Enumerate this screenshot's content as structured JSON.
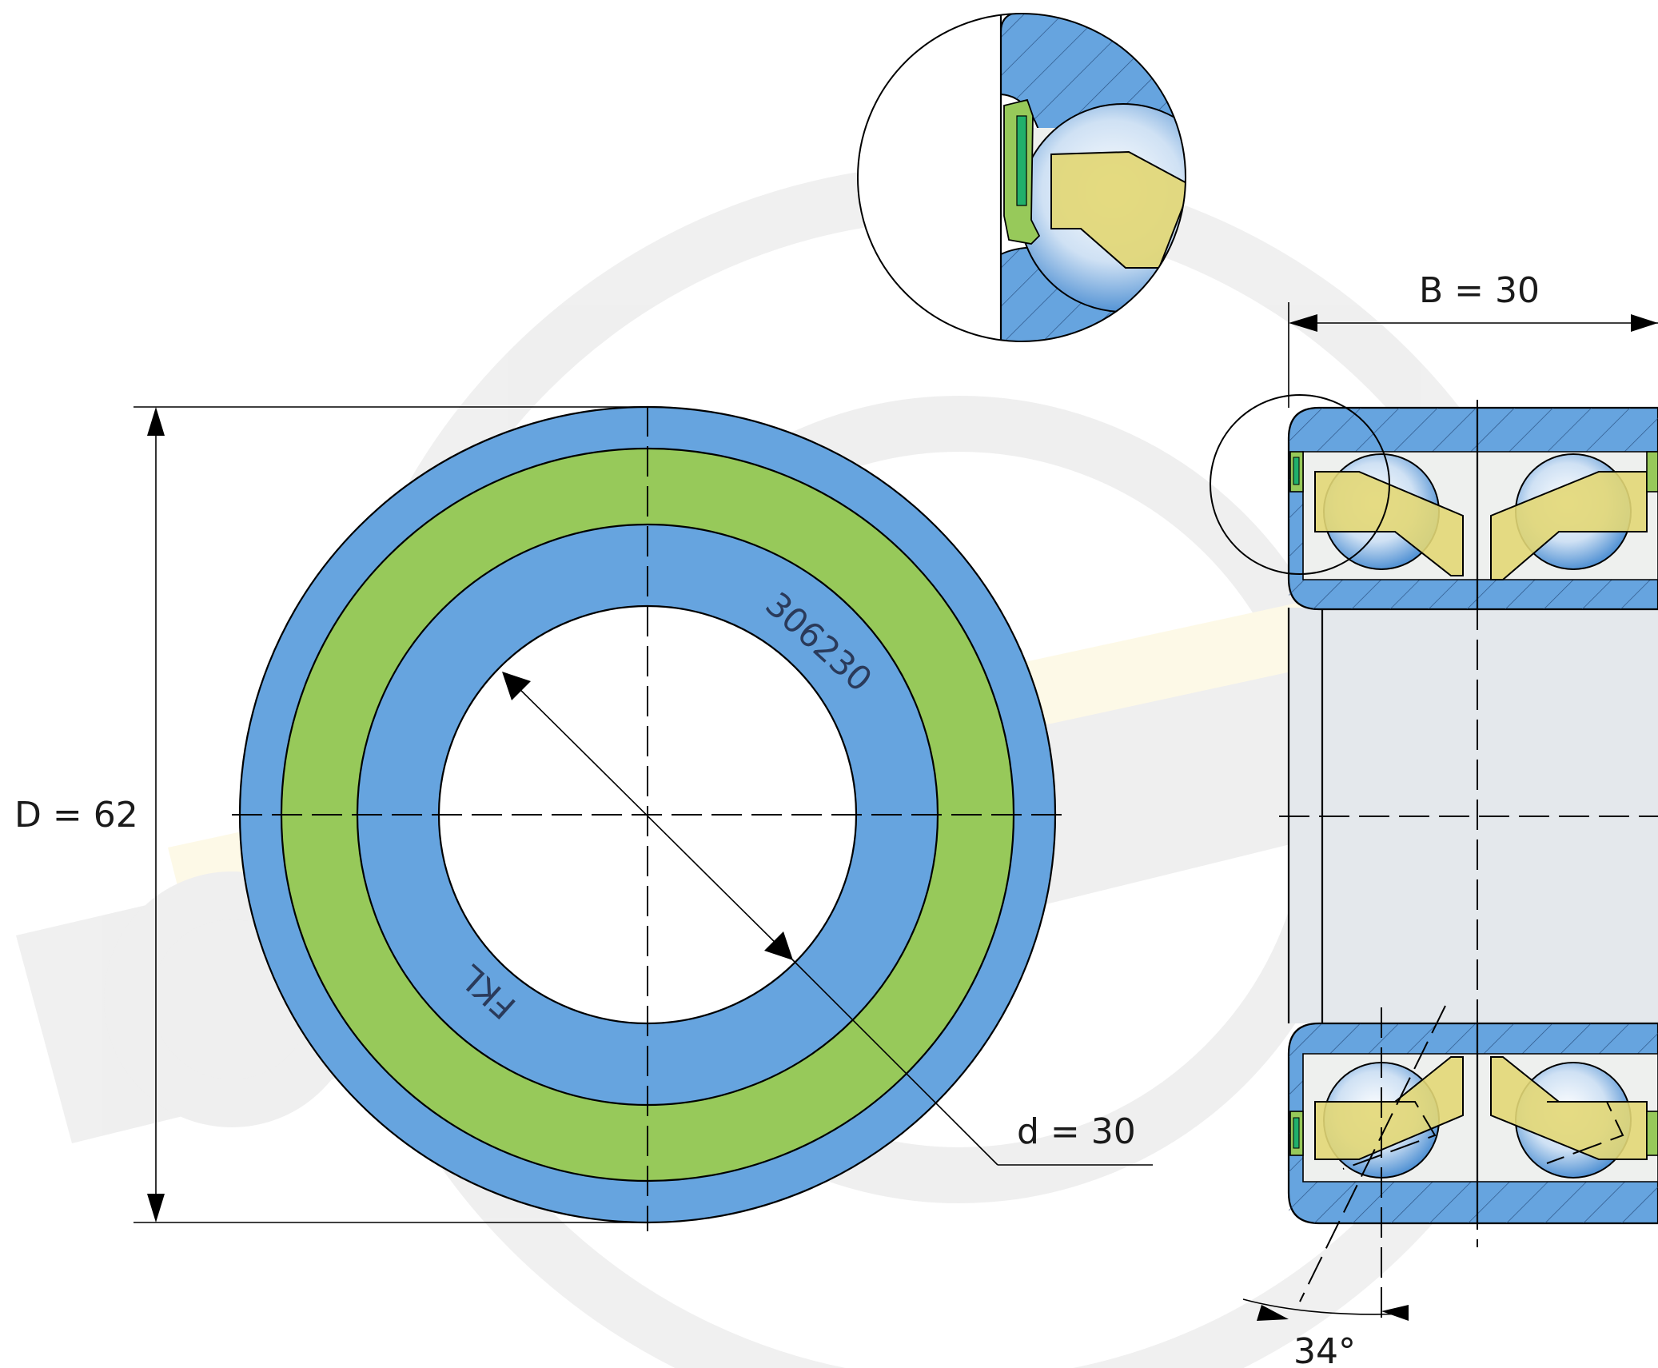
{
  "drawing": {
    "outer_diameter_label": "D = 62",
    "bore_diameter_label": "d = 30",
    "width_label": "B = 30",
    "contact_angle_label": "34°",
    "ring_marking_part_number": "306230",
    "ring_marking_brand": "FKL"
  },
  "colors": {
    "steel_blue": "#66a4df",
    "seal_green": "#97c95a",
    "cage_yellow": "#e2d775",
    "seal_lip_green": "#21b06b",
    "background_fill": "#e4e8ec"
  },
  "icons": {
    "watermark": "fkl-logo-watermark-icon"
  }
}
